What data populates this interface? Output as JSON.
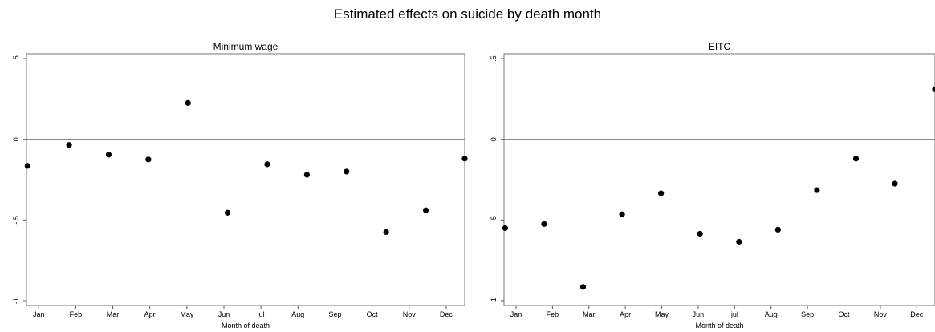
{
  "title": "Estimated effects on suicide by death month",
  "chart_data": [
    {
      "type": "scatter",
      "title": "Minimum wage",
      "xlabel": "Month of death",
      "ylabel": "",
      "categories": [
        "Jan",
        "Feb",
        "Mar",
        "Apr",
        "May",
        "Jun",
        "jul",
        "Aug",
        "Sep",
        "Oct",
        "Nov",
        "Dec"
      ],
      "y_ticks": [
        ".5",
        "0",
        "-.5",
        "-1"
      ],
      "ylim": [
        -1.03,
        0.53
      ],
      "reference_line": 0,
      "grid": false,
      "points": [
        {
          "x": 0.7,
          "y": -0.165
        },
        {
          "x": 1.82,
          "y": -0.035
        },
        {
          "x": 2.89,
          "y": -0.095
        },
        {
          "x": 3.96,
          "y": -0.125
        },
        {
          "x": 5.03,
          "y": 0.225
        },
        {
          "x": 6.1,
          "y": -0.455
        },
        {
          "x": 7.17,
          "y": -0.155
        },
        {
          "x": 8.24,
          "y": -0.22
        },
        {
          "x": 9.31,
          "y": -0.2
        },
        {
          "x": 10.38,
          "y": -0.575
        },
        {
          "x": 11.45,
          "y": -0.44
        },
        {
          "x": 12.5,
          "y": -0.12
        }
      ],
      "xlim": [
        0.67,
        12.5
      ]
    },
    {
      "type": "scatter",
      "title": "EITC",
      "xlabel": "Month of death",
      "ylabel": "",
      "categories": [
        "Jan",
        "Feb",
        "Mar",
        "Apr",
        "May",
        "Jun",
        "jul",
        "Aug",
        "Sep",
        "Oct",
        "Nov",
        "Dec"
      ],
      "y_ticks": [
        ".5",
        "0",
        "-.5",
        "-1"
      ],
      "ylim": [
        -1.03,
        0.53
      ],
      "reference_line": 0,
      "grid": false,
      "points": [
        {
          "x": 0.7,
          "y": -0.55
        },
        {
          "x": 1.77,
          "y": -0.525
        },
        {
          "x": 2.84,
          "y": -0.915
        },
        {
          "x": 3.91,
          "y": -0.465
        },
        {
          "x": 4.98,
          "y": -0.335
        },
        {
          "x": 6.05,
          "y": -0.585
        },
        {
          "x": 7.12,
          "y": -0.635
        },
        {
          "x": 8.19,
          "y": -0.56
        },
        {
          "x": 9.26,
          "y": -0.315
        },
        {
          "x": 10.33,
          "y": -0.12
        },
        {
          "x": 11.4,
          "y": -0.275
        },
        {
          "x": 12.5,
          "y": 0.31
        }
      ],
      "xlim": [
        0.67,
        12.5
      ]
    }
  ]
}
